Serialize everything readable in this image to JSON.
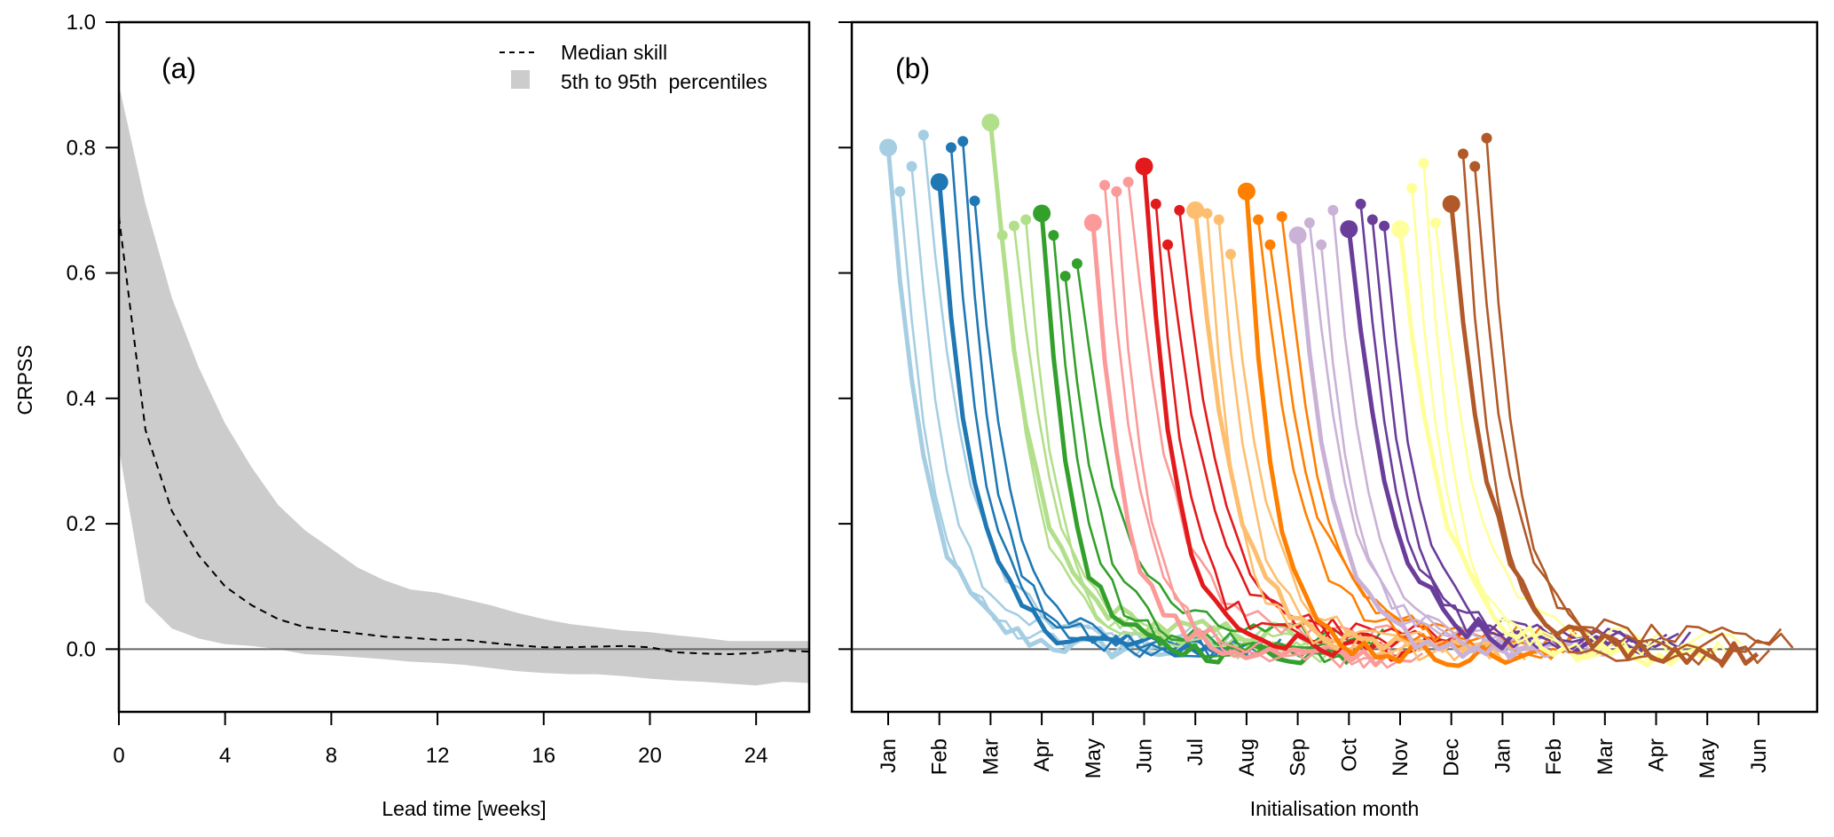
{
  "chart_data": [
    {
      "panel": "a",
      "type": "area",
      "panel_label": "(a)",
      "xlabel": "Lead time [weeks]",
      "ylabel": "CRPSS",
      "xlim": [
        0,
        26
      ],
      "ylim": [
        -0.1,
        1.0
      ],
      "xticks": [
        0,
        4,
        8,
        12,
        16,
        20,
        24
      ],
      "xtick_labels": [
        "0",
        "4",
        "8",
        "12",
        "16",
        "20",
        "24"
      ],
      "yticks": [
        0.0,
        0.2,
        0.4,
        0.6,
        0.8,
        1.0
      ],
      "ytick_labels": [
        "0.0",
        "0.2",
        "0.4",
        "0.6",
        "0.8",
        "1.0"
      ],
      "reference_line": 0.0,
      "legend": {
        "position": "top-right",
        "entries": [
          {
            "label": "Median skill",
            "style": "dashed-line",
            "color": "#000000"
          },
          {
            "label": "5th to 95th  percentiles",
            "style": "filled-box",
            "color": "#cccccc"
          }
        ]
      },
      "x": [
        0,
        1,
        2,
        3,
        4,
        5,
        6,
        7,
        8,
        9,
        10,
        11,
        12,
        13,
        14,
        15,
        16,
        17,
        18,
        19,
        20,
        21,
        22,
        23,
        24,
        25,
        26
      ],
      "series": [
        {
          "name": "Median skill",
          "kind": "line",
          "color": "#000000",
          "values": [
            0.69,
            0.35,
            0.22,
            0.15,
            0.1,
            0.07,
            0.048,
            0.035,
            0.03,
            0.025,
            0.02,
            0.018,
            0.015,
            0.015,
            0.01,
            0.006,
            0.003,
            0.003,
            0.004,
            0.005,
            0.003,
            -0.005,
            -0.007,
            -0.008,
            -0.006,
            -0.002,
            -0.004
          ]
        },
        {
          "name": "95th percentile",
          "kind": "band-upper",
          "color": "#cccccc",
          "values": [
            0.9,
            0.71,
            0.56,
            0.45,
            0.36,
            0.29,
            0.23,
            0.19,
            0.16,
            0.13,
            0.11,
            0.095,
            0.09,
            0.08,
            0.07,
            0.058,
            0.048,
            0.04,
            0.035,
            0.03,
            0.027,
            0.022,
            0.018,
            0.013,
            0.013,
            0.013,
            0.013
          ]
        },
        {
          "name": "5th percentile",
          "kind": "band-lower",
          "color": "#cccccc",
          "values": [
            0.32,
            0.075,
            0.033,
            0.017,
            0.008,
            0.005,
            0.0,
            -0.008,
            -0.01,
            -0.013,
            -0.016,
            -0.02,
            -0.022,
            -0.025,
            -0.03,
            -0.035,
            -0.038,
            -0.04,
            -0.04,
            -0.043,
            -0.047,
            -0.05,
            -0.052,
            -0.055,
            -0.058,
            -0.052,
            -0.054
          ]
        }
      ]
    },
    {
      "panel": "b",
      "type": "line",
      "panel_label": "(b)",
      "xlabel": "Initialisation month",
      "ylabel": "",
      "ylim": [
        -0.1,
        1.0
      ],
      "yticks": [
        0.0,
        0.2,
        0.4,
        0.6,
        0.8,
        1.0
      ],
      "ytick_labels_shown": false,
      "reference_line": 0.0,
      "xtick_labels": [
        "Jan",
        "Feb",
        "Mar",
        "Apr",
        "May",
        "Jun",
        "Jul",
        "Aug",
        "Sep",
        "Oct",
        "Nov",
        "Dec",
        "Jan",
        "Feb",
        "Mar",
        "Apr",
        "May",
        "Jun"
      ],
      "lead_time_weeks": 26,
      "notes": "Each month has one thick line with a large marker (first initialisation) and three thinner lines with small markers (later weekly initialisations); markers show the initial CRPSS, lines show CRPSS decaying with lead time towards ~0.",
      "series": [
        {
          "month": "Jan",
          "color": "#a6cee3",
          "init_values": [
            0.8,
            0.73,
            0.77,
            0.82
          ]
        },
        {
          "month": "Feb",
          "color": "#1f78b4",
          "init_values": [
            0.745,
            0.8,
            0.81,
            0.715
          ]
        },
        {
          "month": "Mar",
          "color": "#b2df8a",
          "init_values": [
            0.84,
            0.66,
            0.675,
            0.685
          ]
        },
        {
          "month": "Apr",
          "color": "#33a02c",
          "init_values": [
            0.695,
            0.66,
            0.595,
            0.615
          ]
        },
        {
          "month": "May",
          "color": "#fb9a99",
          "init_values": [
            0.68,
            0.74,
            0.73,
            0.745
          ]
        },
        {
          "month": "Jun",
          "color": "#e31a1c",
          "init_values": [
            0.77,
            0.71,
            0.645,
            0.7
          ]
        },
        {
          "month": "Jul",
          "color": "#fdbf6f",
          "init_values": [
            0.7,
            0.695,
            0.685,
            0.63
          ]
        },
        {
          "month": "Aug",
          "color": "#ff7f00",
          "init_values": [
            0.73,
            0.685,
            0.645,
            0.69
          ]
        },
        {
          "month": "Sep",
          "color": "#cab2d6",
          "init_values": [
            0.66,
            0.68,
            0.645,
            0.7
          ]
        },
        {
          "month": "Oct",
          "color": "#6a3d9a",
          "init_values": [
            0.67,
            0.71,
            0.685,
            0.675
          ]
        },
        {
          "month": "Nov",
          "color": "#ffff99",
          "init_values": [
            0.67,
            0.735,
            0.775,
            0.68
          ]
        },
        {
          "month": "Dec",
          "color": "#b15928",
          "init_values": [
            0.71,
            0.79,
            0.77,
            0.815
          ]
        }
      ]
    }
  ]
}
